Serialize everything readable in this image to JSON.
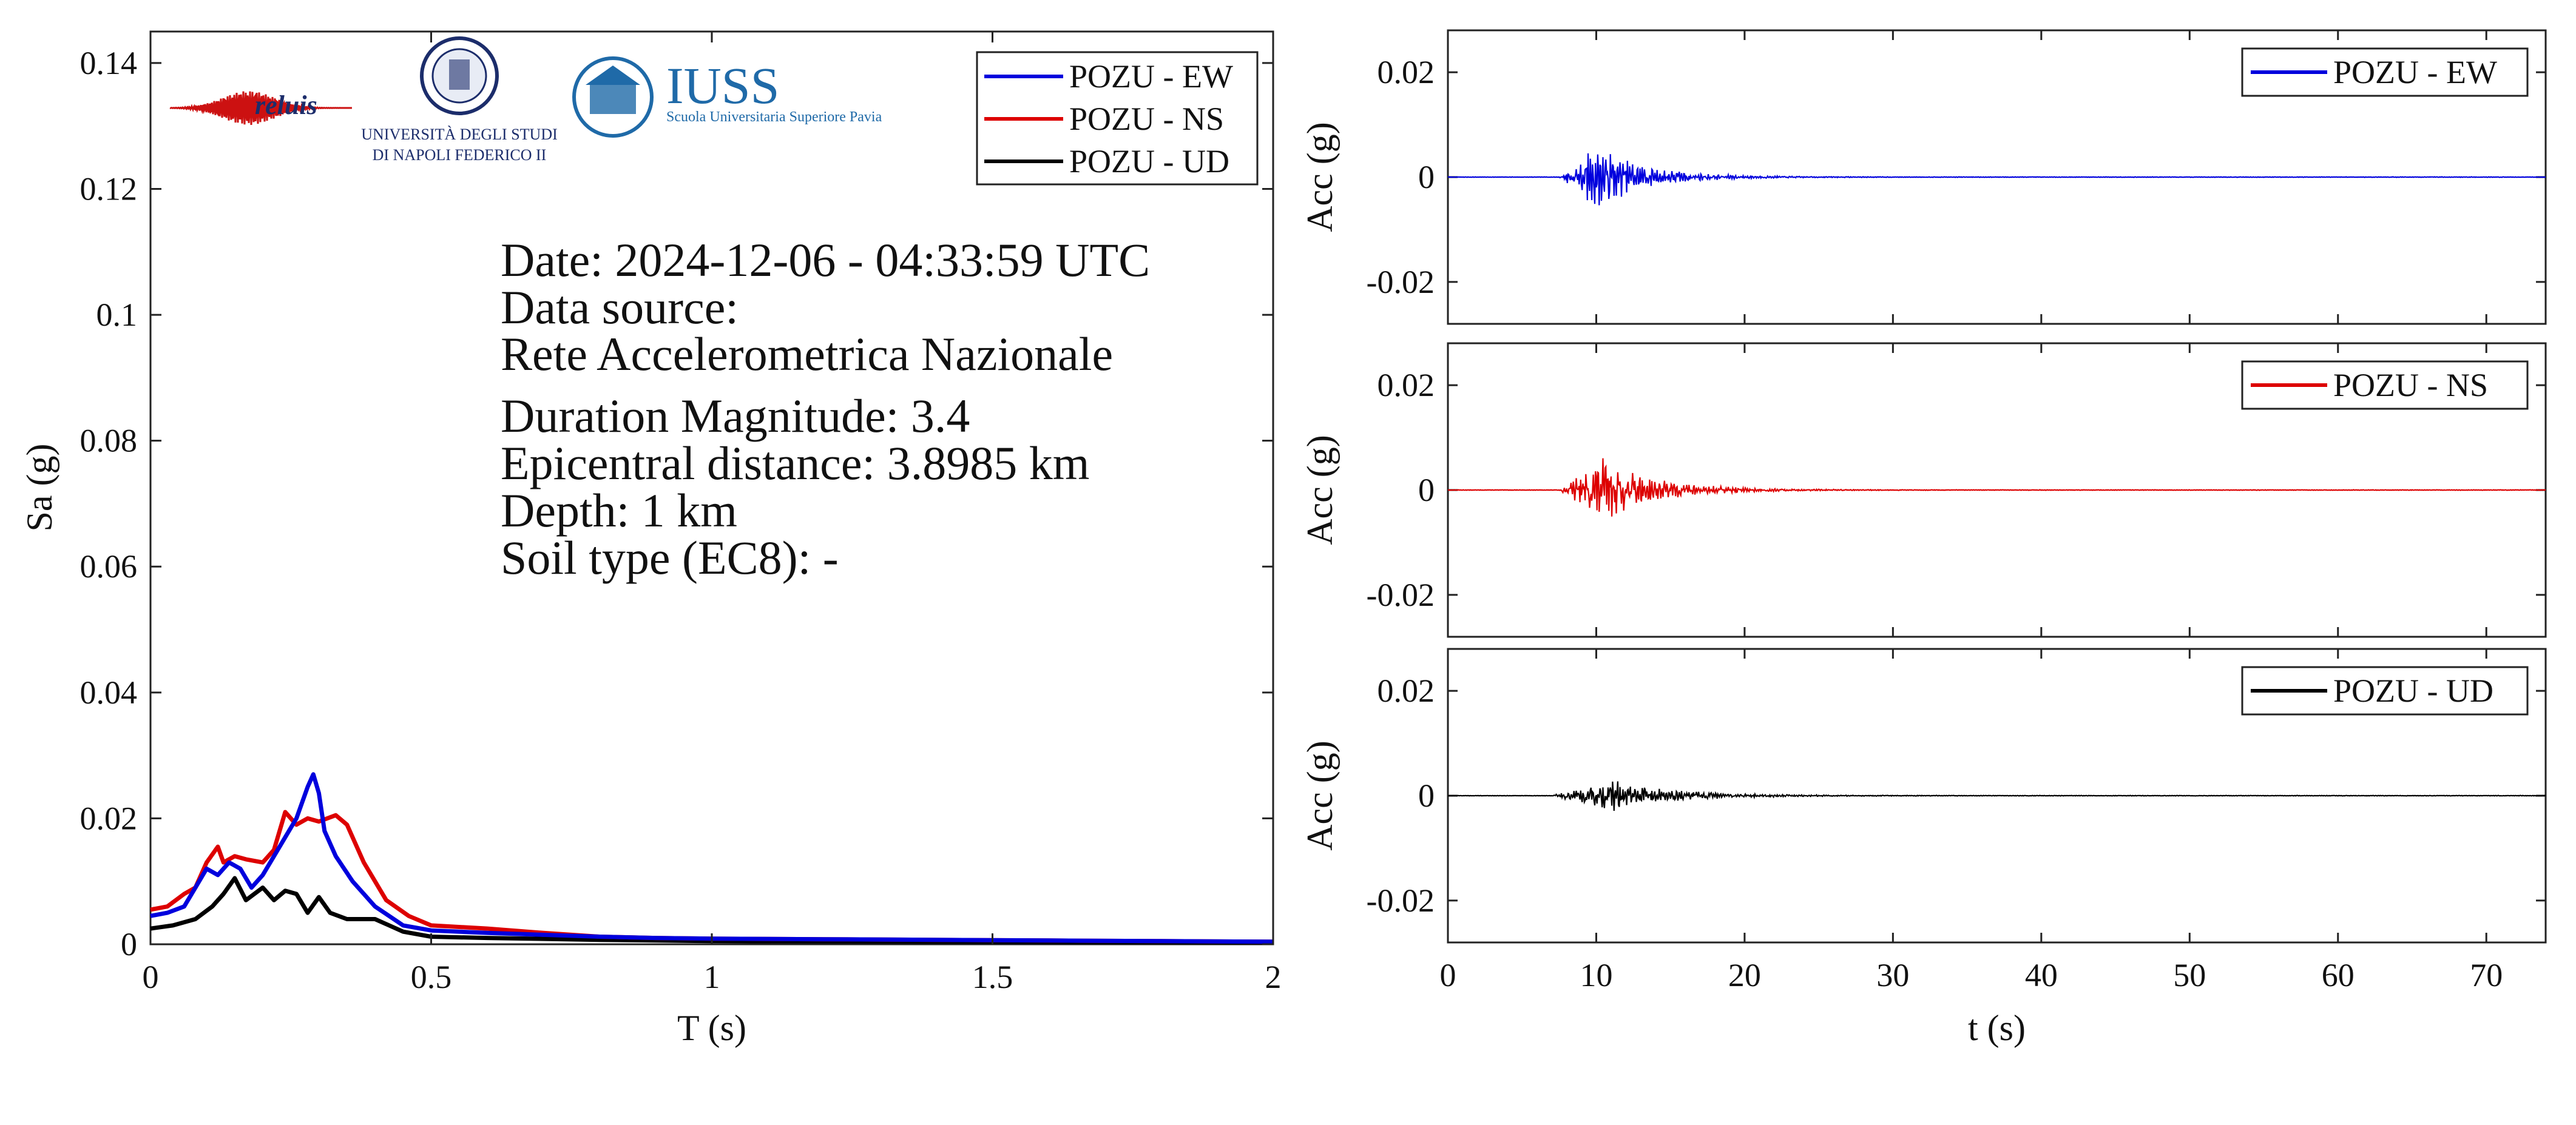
{
  "info": {
    "date": "Date: 2024-12-06 - 04:33:59 UTC",
    "data_source": "Data source:",
    "network": "Rete Accelerometrica Nazionale",
    "magnitude": "Duration Magnitude: 3.4",
    "distance": "Epicentral distance: 3.8985 km",
    "depth": "Depth: 1 km",
    "soil": "Soil type (EC8): -"
  },
  "logos": {
    "reluis": "reluis",
    "unina_line1": "UNIVERSITÀ DEGLI STUDI",
    "unina_line2": "DI NAPOLI FEDERICO II",
    "iuss": "IUSS",
    "iuss_sub": "Scuola Universitaria Superiore Pavia"
  },
  "colors": {
    "EW": "#0000dd",
    "NS": "#dd0000",
    "UD": "#000000"
  },
  "chart_data": [
    {
      "type": "line",
      "xlabel": "T (s)",
      "ylabel": "Sa (g)",
      "xlim": [
        0,
        2
      ],
      "ylim": [
        0,
        0.145
      ],
      "xticks": [
        0,
        0.5,
        1,
        1.5,
        2
      ],
      "xtick_labels": [
        "0",
        "0.5",
        "1",
        "1.5",
        "2"
      ],
      "yticks": [
        0,
        0.02,
        0.04,
        0.06,
        0.08,
        0.1,
        0.12,
        0.14
      ],
      "ytick_labels": [
        "0",
        "0.02",
        "0.04",
        "0.06",
        "0.08",
        "0.1",
        "0.12",
        "0.14"
      ],
      "legend": "top-right",
      "series": [
        {
          "name": "POZU - EW",
          "color": "#0000dd",
          "x": [
            0,
            0.03,
            0.06,
            0.08,
            0.1,
            0.12,
            0.14,
            0.16,
            0.18,
            0.2,
            0.22,
            0.24,
            0.26,
            0.28,
            0.29,
            0.3,
            0.31,
            0.33,
            0.36,
            0.4,
            0.45,
            0.5,
            0.6,
            0.7,
            0.8,
            0.9,
            1.0,
            1.2,
            1.4,
            1.6,
            1.8,
            2.0
          ],
          "y": [
            0.0045,
            0.005,
            0.006,
            0.009,
            0.012,
            0.011,
            0.013,
            0.012,
            0.009,
            0.011,
            0.014,
            0.017,
            0.02,
            0.025,
            0.027,
            0.024,
            0.018,
            0.014,
            0.01,
            0.006,
            0.003,
            0.0022,
            0.0018,
            0.0015,
            0.0012,
            0.001,
            0.0009,
            0.0008,
            0.0007,
            0.0006,
            0.0005,
            0.0004
          ]
        },
        {
          "name": "POZU - NS",
          "color": "#dd0000",
          "x": [
            0,
            0.03,
            0.06,
            0.08,
            0.1,
            0.12,
            0.13,
            0.15,
            0.17,
            0.2,
            0.22,
            0.24,
            0.26,
            0.28,
            0.3,
            0.33,
            0.35,
            0.38,
            0.42,
            0.46,
            0.5,
            0.6,
            0.7,
            0.8,
            0.9,
            1.0,
            1.2,
            1.4,
            1.6,
            1.8,
            2.0
          ],
          "y": [
            0.0055,
            0.006,
            0.008,
            0.009,
            0.013,
            0.0155,
            0.013,
            0.014,
            0.0135,
            0.013,
            0.015,
            0.021,
            0.019,
            0.02,
            0.0195,
            0.0205,
            0.019,
            0.013,
            0.007,
            0.0045,
            0.003,
            0.0025,
            0.0018,
            0.0012,
            0.001,
            0.0009,
            0.0008,
            0.0007,
            0.0006,
            0.0005,
            0.0004
          ]
        },
        {
          "name": "POZU - UD",
          "color": "#000000",
          "x": [
            0,
            0.04,
            0.08,
            0.11,
            0.13,
            0.15,
            0.17,
            0.2,
            0.22,
            0.24,
            0.26,
            0.28,
            0.3,
            0.32,
            0.35,
            0.4,
            0.45,
            0.5,
            0.6,
            0.8,
            1.0,
            1.4,
            2.0
          ],
          "y": [
            0.0025,
            0.003,
            0.004,
            0.006,
            0.008,
            0.0105,
            0.007,
            0.009,
            0.007,
            0.0085,
            0.008,
            0.005,
            0.0075,
            0.005,
            0.004,
            0.004,
            0.002,
            0.0012,
            0.001,
            0.0007,
            0.0005,
            0.0004,
            0.0003
          ]
        }
      ]
    },
    {
      "type": "line",
      "xlabel": "",
      "ylabel": "Acc (g)",
      "xlim": [
        0,
        74
      ],
      "ylim": [
        -0.028,
        0.028
      ],
      "yticks": [
        -0.02,
        0,
        0.02
      ],
      "ytick_labels": [
        "-0.02",
        "0",
        "0.02"
      ],
      "legend": "top-right",
      "series": [
        {
          "name": "POZU - EW",
          "color": "#0000dd",
          "onset": 7.5,
          "peak_time": 10,
          "peak": 0.0045,
          "decay": 3.2,
          "seed": 7
        }
      ]
    },
    {
      "type": "line",
      "xlabel": "",
      "ylabel": "Acc (g)",
      "xlim": [
        0,
        74
      ],
      "ylim": [
        -0.028,
        0.028
      ],
      "yticks": [
        -0.02,
        0,
        0.02
      ],
      "ytick_labels": [
        "-0.02",
        "0",
        "0.02"
      ],
      "legend": "top-right",
      "series": [
        {
          "name": "POZU - NS",
          "color": "#dd0000",
          "onset": 7.5,
          "peak_time": 10.5,
          "peak": 0.0045,
          "decay": 3.5,
          "seed": 13
        }
      ]
    },
    {
      "type": "line",
      "xlabel": "t (s)",
      "ylabel": "Acc (g)",
      "xlim": [
        0,
        74
      ],
      "ylim": [
        -0.028,
        0.028
      ],
      "xticks": [
        0,
        10,
        20,
        30,
        40,
        50,
        60,
        70
      ],
      "xtick_labels": [
        "0",
        "10",
        "20",
        "30",
        "40",
        "50",
        "60",
        "70"
      ],
      "yticks": [
        -0.02,
        0,
        0.02
      ],
      "ytick_labels": [
        "-0.02",
        "0",
        "0.02"
      ],
      "legend": "top-right",
      "series": [
        {
          "name": "POZU - UD",
          "color": "#000000",
          "onset": 7,
          "peak_time": 11,
          "peak": 0.0022,
          "decay": 4,
          "seed": 21
        }
      ]
    }
  ]
}
